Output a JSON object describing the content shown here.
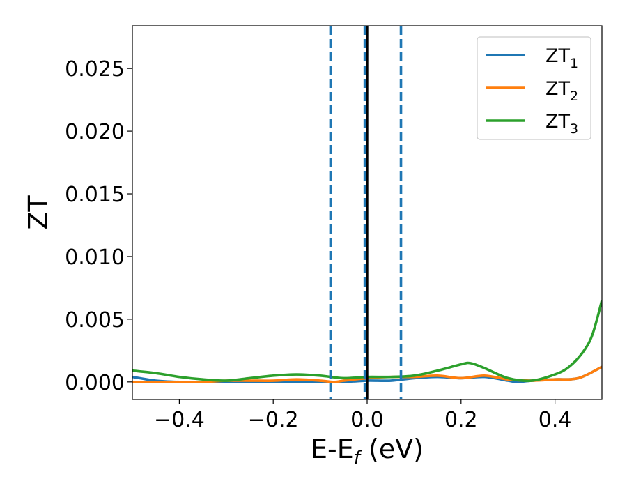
{
  "chart_data": {
    "type": "line",
    "title": "",
    "xlabel": "E-E",
    "xlabel_sub": "f",
    "xlabel_unit": " (eV)",
    "ylabel": "ZT",
    "xlim": [
      -0.5,
      0.5
    ],
    "ylim": [
      -0.0014,
      0.0284
    ],
    "xticks": [
      -0.4,
      -0.2,
      0.0,
      0.2,
      0.4
    ],
    "xtick_labels": [
      "−0.4",
      "−0.2",
      "0.0",
      "0.2",
      "0.4"
    ],
    "yticks": [
      0.0,
      0.005,
      0.01,
      0.015,
      0.02,
      0.025
    ],
    "ytick_labels": [
      "0.000",
      "0.005",
      "0.010",
      "0.015",
      "0.020",
      "0.025"
    ],
    "grid": false,
    "legend_position": "top-right",
    "vlines": [
      {
        "x": -0.078,
        "style": "dashed",
        "color": "#1f77b4"
      },
      {
        "x": -0.005,
        "style": "dashed",
        "color": "#1f77b4"
      },
      {
        "x": 0.0,
        "style": "solid",
        "color": "#000000"
      },
      {
        "x": 0.072,
        "style": "dashed",
        "color": "#1f77b4"
      }
    ],
    "series": [
      {
        "name": "ZT",
        "name_sub": "1",
        "color": "#1f77b4",
        "x": [
          -0.5,
          -0.45,
          -0.4,
          -0.35,
          -0.3,
          -0.25,
          -0.2,
          -0.15,
          -0.1,
          -0.05,
          0.0,
          0.05,
          0.1,
          0.15,
          0.2,
          0.25,
          0.3,
          0.32,
          0.35,
          0.4,
          0.45,
          0.5
        ],
        "values": [
          0.0004,
          0.0001,
          0.0,
          0.0,
          0.0,
          0.0,
          0.0,
          0.0,
          0.0,
          0.0,
          0.0001,
          0.0001,
          0.0003,
          0.0004,
          0.0003,
          0.0004,
          0.0001,
          0.0,
          0.0001,
          0.0002,
          0.0003,
          0.0012
        ]
      },
      {
        "name": "ZT",
        "name_sub": "2",
        "color": "#ff7f0e",
        "x": [
          -0.5,
          -0.45,
          -0.4,
          -0.35,
          -0.3,
          -0.25,
          -0.2,
          -0.15,
          -0.1,
          -0.07,
          -0.05,
          0.0,
          0.05,
          0.1,
          0.15,
          0.2,
          0.25,
          0.3,
          0.35,
          0.4,
          0.45,
          0.5
        ],
        "values": [
          0.0,
          0.0,
          0.0,
          0.0,
          0.0001,
          0.0001,
          0.0001,
          0.0002,
          0.0001,
          0.0,
          0.0001,
          0.0003,
          0.0004,
          0.0004,
          0.0005,
          0.0003,
          0.0005,
          0.0002,
          0.0001,
          0.0002,
          0.0003,
          0.0012
        ]
      },
      {
        "name": "ZT",
        "name_sub": "3",
        "color": "#2ca02c",
        "x": [
          -0.5,
          -0.45,
          -0.4,
          -0.35,
          -0.3,
          -0.25,
          -0.2,
          -0.15,
          -0.1,
          -0.05,
          0.0,
          0.05,
          0.1,
          0.15,
          0.2,
          0.22,
          0.25,
          0.3,
          0.35,
          0.4,
          0.43,
          0.46,
          0.48,
          0.5
        ],
        "values": [
          0.0009,
          0.0007,
          0.0004,
          0.0002,
          0.0001,
          0.0003,
          0.0005,
          0.0006,
          0.0005,
          0.0003,
          0.0004,
          0.0004,
          0.0005,
          0.0009,
          0.0014,
          0.0015,
          0.0011,
          0.0003,
          0.0001,
          0.0006,
          0.0012,
          0.0024,
          0.0038,
          0.0065
        ]
      }
    ]
  }
}
